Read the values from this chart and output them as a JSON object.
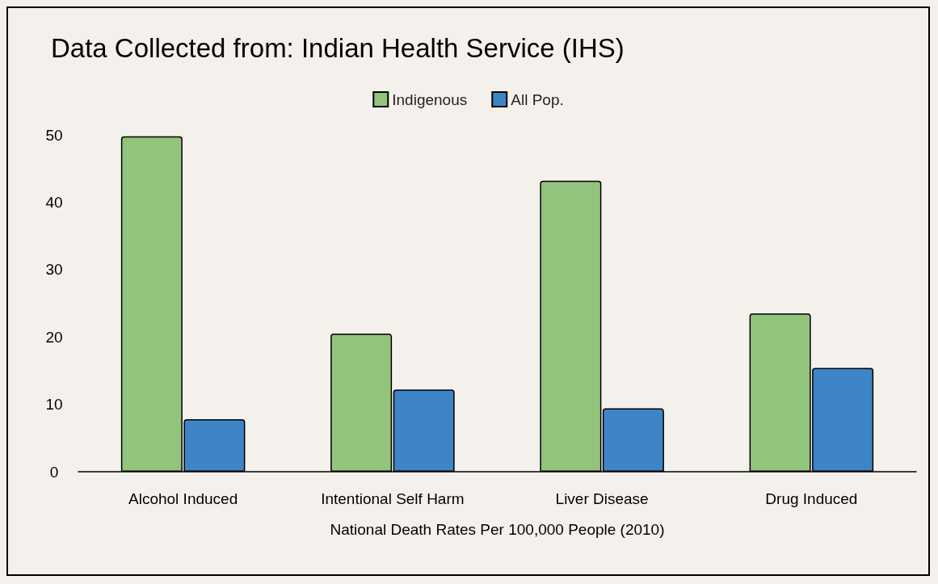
{
  "chart_data": {
    "type": "bar",
    "title": "Data Collected from: Indian Health Service (IHS)",
    "xlabel": "National Death Rates Per 100,000 People (2010)",
    "categories": [
      "Alcohol Induced",
      "Intentional Self Harm",
      "Liver Disease",
      "Drug Induced"
    ],
    "series": [
      {
        "name": "Indigenous",
        "color": "#93c47d",
        "values": [
          49.8,
          20.5,
          43.2,
          23.5
        ]
      },
      {
        "name": "All Pop.",
        "color": "#3d85c6",
        "values": [
          7.8,
          12.2,
          9.4,
          15.4
        ]
      }
    ],
    "ylim": [
      0,
      50
    ],
    "yticks": [
      0,
      10,
      20,
      30,
      40,
      50
    ],
    "grid": false,
    "legend": "top"
  }
}
